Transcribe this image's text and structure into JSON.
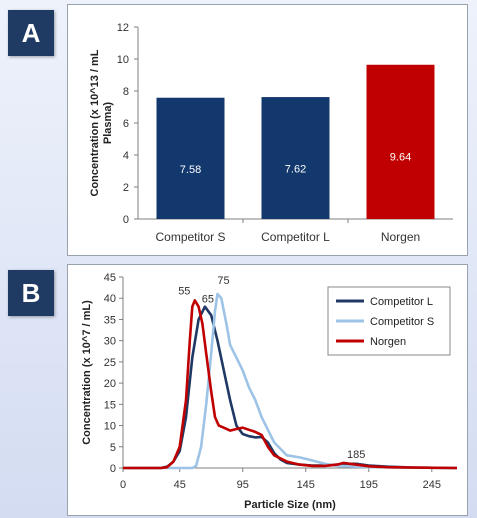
{
  "panel_labels": {
    "a": "A",
    "b": "B"
  },
  "colors": {
    "navy": "#12386e",
    "red": "#c00000",
    "light_blue": "#9dc3e6",
    "line_navy": "#1f3864",
    "line_red": "#c00000"
  },
  "chart_data": [
    {
      "type": "bar",
      "categories": [
        "Competitor S",
        "Competitor L",
        "Norgen"
      ],
      "values": [
        7.58,
        7.62,
        9.64
      ],
      "value_labels": [
        "7.58",
        "7.62",
        "9.64"
      ],
      "bar_colors": [
        "#12386e",
        "#12386e",
        "#c00000"
      ],
      "ylabel": "Concentration (x 10^13 / mL Plasma)",
      "ylabel_lines": [
        "Concentration (x 10^13 / mL",
        "Plasma)"
      ],
      "ylim": [
        0,
        12
      ],
      "yticks": [
        0,
        2,
        4,
        6,
        8,
        10,
        12
      ],
      "ytick_labels": [
        "0",
        "2",
        "4",
        "6",
        "8",
        "10",
        "12"
      ],
      "grid": false
    },
    {
      "type": "line",
      "xlabel": "Particle Size (nm)",
      "ylabel": "Concentration (x 10^7 / mL)",
      "xlim": [
        0,
        265
      ],
      "ylim": [
        0,
        45
      ],
      "xticks": [
        0,
        45,
        95,
        145,
        195,
        245
      ],
      "xtick_labels": [
        "0",
        "45",
        "95",
        "145",
        "195",
        "245"
      ],
      "yticks": [
        0,
        5,
        10,
        15,
        20,
        25,
        30,
        35,
        40,
        45
      ],
      "ytick_labels": [
        "0",
        "5",
        "10",
        "15",
        "20",
        "25",
        "30",
        "35",
        "40",
        "45"
      ],
      "legend_position": "top-right",
      "grid": false,
      "series": [
        {
          "name": "Competitor L",
          "color": "#1f3864",
          "points": [
            [
              0,
              0
            ],
            [
              30,
              0
            ],
            [
              35,
              0.3
            ],
            [
              40,
              1.5
            ],
            [
              45,
              4
            ],
            [
              50,
              12
            ],
            [
              55,
              26
            ],
            [
              60,
              35
            ],
            [
              65,
              38
            ],
            [
              70,
              36
            ],
            [
              75,
              30
            ],
            [
              80,
              23
            ],
            [
              85,
              16
            ],
            [
              90,
              10
            ],
            [
              95,
              8
            ],
            [
              100,
              7.5
            ],
            [
              105,
              7.2
            ],
            [
              110,
              7.3
            ],
            [
              115,
              6
            ],
            [
              120,
              3.5
            ],
            [
              125,
              2
            ],
            [
              130,
              1.2
            ],
            [
              140,
              0.8
            ],
            [
              150,
              0.6
            ],
            [
              160,
              0.6
            ],
            [
              170,
              0.8
            ],
            [
              175,
              1
            ],
            [
              180,
              1
            ],
            [
              185,
              1
            ],
            [
              195,
              0.6
            ],
            [
              210,
              0.3
            ],
            [
              230,
              0.1
            ],
            [
              265,
              0
            ]
          ]
        },
        {
          "name": "Competitor S",
          "color": "#9dc3e6",
          "points": [
            [
              0,
              0
            ],
            [
              55,
              0
            ],
            [
              58,
              0.5
            ],
            [
              62,
              5
            ],
            [
              66,
              15
            ],
            [
              70,
              27
            ],
            [
              73,
              37
            ],
            [
              75,
              41
            ],
            [
              78,
              40
            ],
            [
              82,
              34
            ],
            [
              85,
              29
            ],
            [
              90,
              26
            ],
            [
              95,
              23
            ],
            [
              100,
              19
            ],
            [
              105,
              16
            ],
            [
              110,
              12
            ],
            [
              115,
              9
            ],
            [
              120,
              6
            ],
            [
              125,
              4.5
            ],
            [
              130,
              3
            ],
            [
              140,
              2.5
            ],
            [
              150,
              1.8
            ],
            [
              160,
              1
            ],
            [
              170,
              0.5
            ],
            [
              180,
              0.4
            ],
            [
              195,
              0.2
            ],
            [
              220,
              0.1
            ],
            [
              265,
              0
            ]
          ]
        },
        {
          "name": "Norgen",
          "color": "#c00000",
          "points": [
            [
              0,
              0
            ],
            [
              30,
              0
            ],
            [
              35,
              0.2
            ],
            [
              40,
              1.5
            ],
            [
              45,
              5
            ],
            [
              50,
              16
            ],
            [
              53,
              30
            ],
            [
              55,
              38
            ],
            [
              57,
              39.5
            ],
            [
              60,
              38
            ],
            [
              63,
              34
            ],
            [
              66,
              27
            ],
            [
              70,
              18
            ],
            [
              73,
              12
            ],
            [
              76,
              10
            ],
            [
              80,
              9.5
            ],
            [
              85,
              8.8
            ],
            [
              90,
              9.2
            ],
            [
              95,
              9.5
            ],
            [
              100,
              9
            ],
            [
              105,
              8.5
            ],
            [
              110,
              7.8
            ],
            [
              115,
              5
            ],
            [
              120,
              3
            ],
            [
              130,
              1.5
            ],
            [
              140,
              0.8
            ],
            [
              150,
              0.5
            ],
            [
              160,
              0.5
            ],
            [
              170,
              0.8
            ],
            [
              175,
              1.2
            ],
            [
              180,
              1
            ],
            [
              185,
              0.8
            ],
            [
              195,
              0.4
            ],
            [
              210,
              0.2
            ],
            [
              230,
              0.1
            ],
            [
              265,
              0
            ]
          ]
        }
      ],
      "annotations": [
        {
          "text": "55",
          "x": 55,
          "y": 39.5
        },
        {
          "text": "65",
          "x": 65,
          "y": 38
        },
        {
          "text": "75",
          "x": 75,
          "y": 41
        },
        {
          "text": "185",
          "x": 185,
          "y": 1
        }
      ]
    }
  ]
}
